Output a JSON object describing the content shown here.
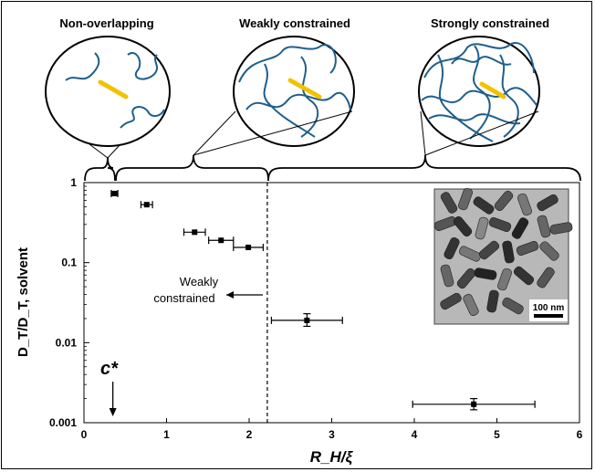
{
  "panel_titles": {
    "non_overlapping": "Non-overlapping",
    "weakly": "Weakly constrained",
    "strongly": "Strongly constrained"
  },
  "colors": {
    "polymer": "#1f5f8b",
    "rod": "#f2c200",
    "axis": "#000000"
  },
  "annotations": {
    "weakly_line1": "Weakly",
    "weakly_line2": "constrained",
    "c_star": "c*",
    "scale_bar": "100 nm"
  },
  "chart_data": {
    "type": "scatter",
    "xlabel": "R_H/ξ",
    "ylabel": "D_T/D_T, solvent",
    "xlim": [
      0,
      6
    ],
    "ylim": [
      0.001,
      1
    ],
    "yscale": "log",
    "xticks": [
      "0",
      "1",
      "2",
      "3",
      "4",
      "5",
      "6"
    ],
    "yticks": [
      "0.001",
      "0.01",
      "0.1",
      "1"
    ],
    "grid": false,
    "legend": "none",
    "dashed_vline_x": 2.22,
    "c_star_x": 0.35,
    "points": [
      {
        "x": 0.37,
        "y": 0.73,
        "xerr": 0.04
      },
      {
        "x": 0.76,
        "y": 0.53,
        "xerr": 0.07
      },
      {
        "x": 1.34,
        "y": 0.24,
        "xerr": 0.13
      },
      {
        "x": 1.66,
        "y": 0.19,
        "xerr": 0.15
      },
      {
        "x": 1.99,
        "y": 0.155,
        "xerr": 0.18
      },
      {
        "x": 2.7,
        "y": 0.019,
        "xerr": 0.43,
        "yerr_low": 0.016,
        "yerr_high": 0.023
      },
      {
        "x": 4.72,
        "y": 0.0017,
        "xerr": 0.74,
        "yerr_low": 0.00145,
        "yerr_high": 0.002
      }
    ]
  }
}
